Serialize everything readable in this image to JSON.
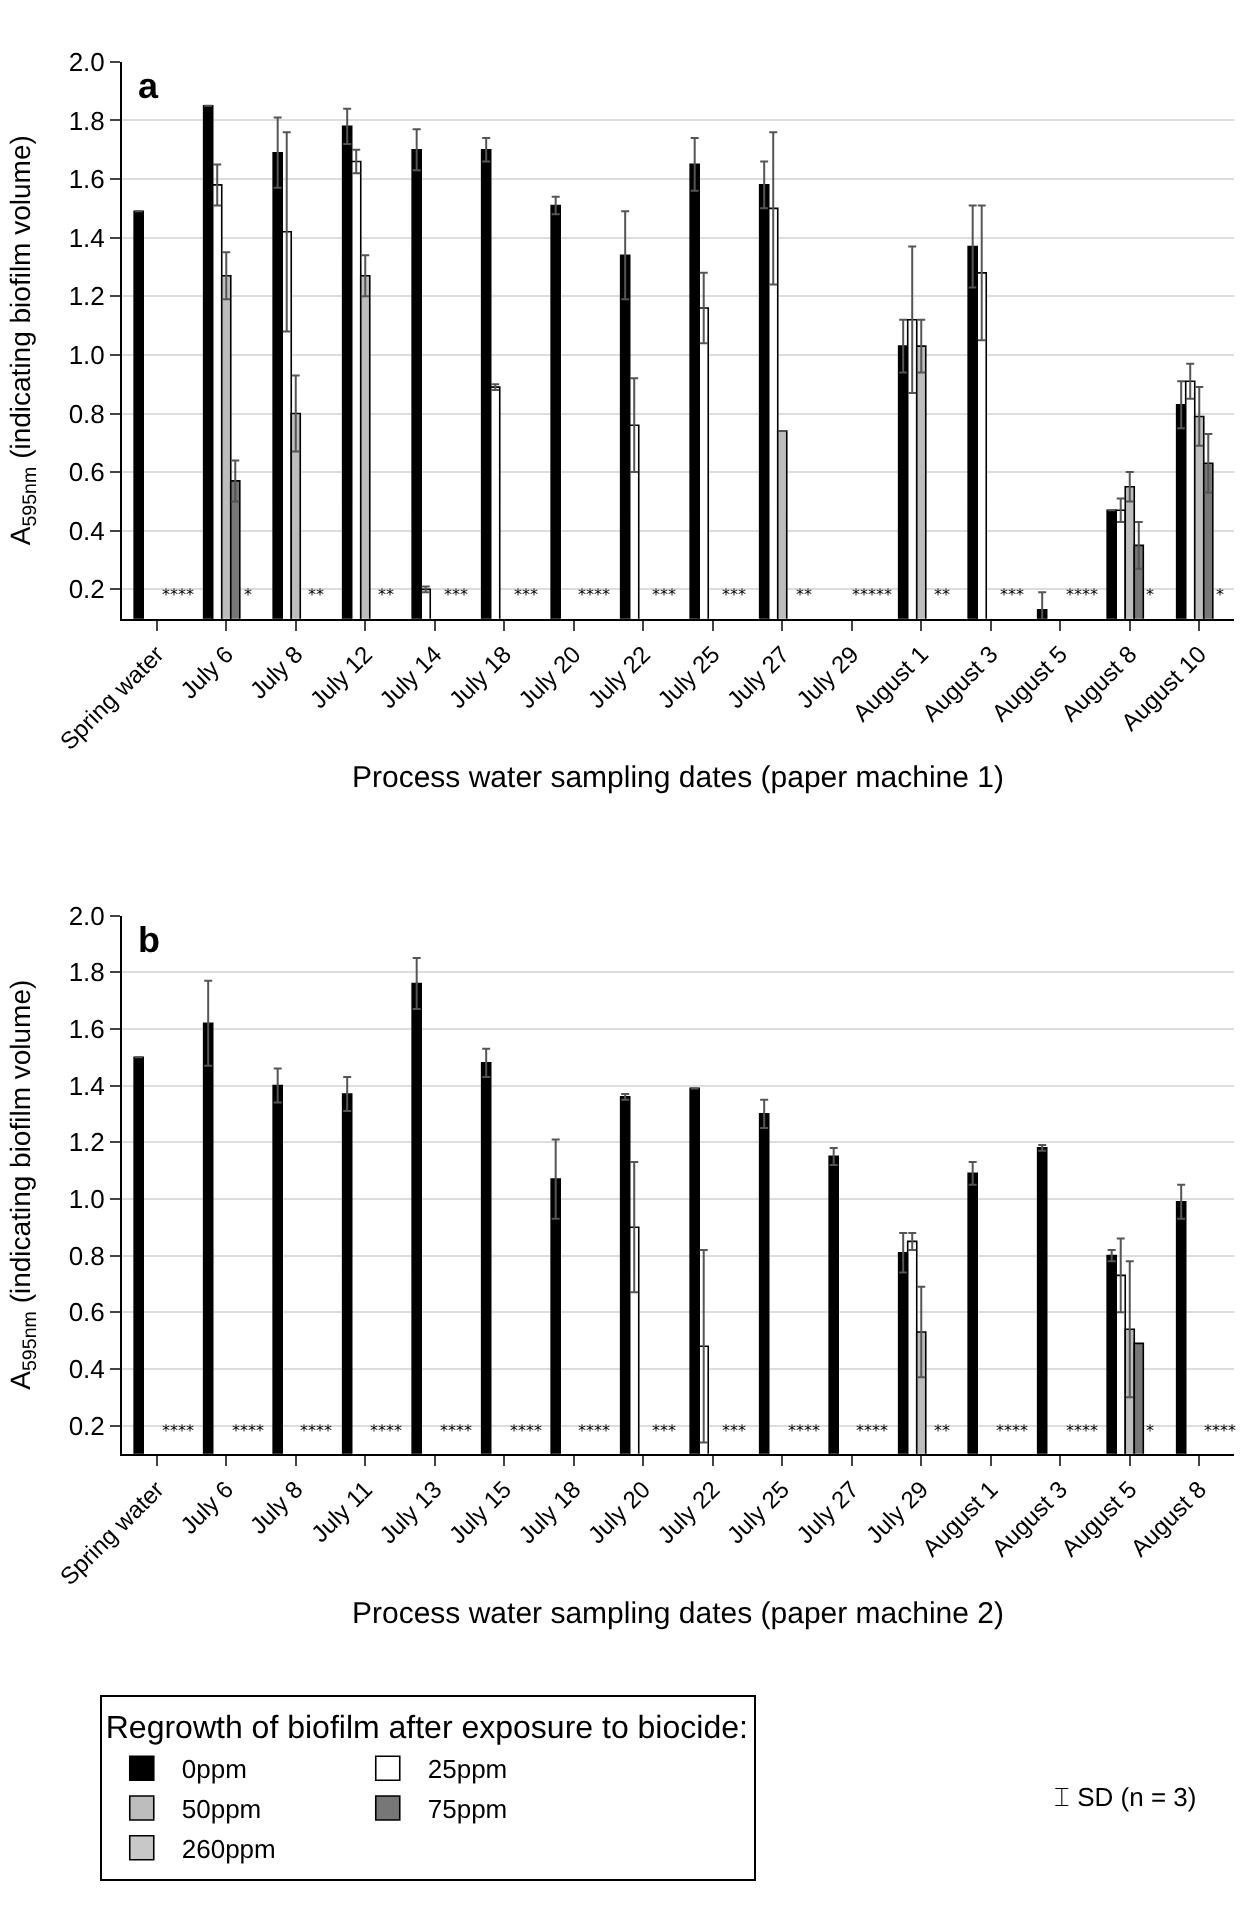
{
  "chart_data": [
    {
      "type": "bar",
      "title": "a",
      "xlabel": "Process water sampling dates (paper machine 1)",
      "ylabel": "A$_{595nm}$ (indicating biofilm volume)",
      "categories": [
        "Spring water",
        "July 6",
        "July 8",
        "July 12",
        "July 14",
        "July 18",
        "July 20",
        "July 22",
        "July 25",
        "July 27",
        "July 29",
        "August 1",
        "August 3",
        "August 5",
        "August 8",
        "August 10"
      ],
      "series": [
        {
          "color": "#000000",
          "values": [
            1.49,
            1.85,
            1.69,
            1.78,
            1.7,
            1.7,
            1.51,
            1.34,
            1.65,
            1.58,
            null,
            1.03,
            1.37,
            0.13,
            0.47,
            0.83
          ],
          "errors": [
            null,
            null,
            0.12,
            0.06,
            0.07,
            0.04,
            0.03,
            0.15,
            0.09,
            0.08,
            null,
            0.09,
            0.14,
            0.06,
            null,
            0.08
          ]
        },
        {
          "color": "#ffffff",
          "values": [
            null,
            1.58,
            1.42,
            1.66,
            0.2,
            0.89,
            null,
            0.76,
            1.16,
            1.5,
            null,
            1.12,
            1.28,
            null,
            0.47,
            0.91
          ],
          "errors": [
            null,
            0.07,
            0.34,
            0.04,
            0.01,
            0.01,
            null,
            0.16,
            0.12,
            0.26,
            null,
            0.25,
            0.23,
            null,
            0.04,
            0.06
          ]
        },
        {
          "color": "#bdbdbd",
          "values": [
            null,
            1.27,
            0.8,
            1.27,
            null,
            null,
            null,
            null,
            null,
            0.74,
            null,
            1.03,
            null,
            null,
            0.55,
            0.79
          ],
          "errors": [
            null,
            0.08,
            0.13,
            0.07,
            null,
            null,
            null,
            null,
            null,
            null,
            null,
            0.09,
            null,
            null,
            0.05,
            0.1
          ]
        },
        {
          "color": "#777777",
          "values": [
            null,
            0.57,
            null,
            null,
            null,
            null,
            null,
            null,
            null,
            null,
            null,
            null,
            null,
            null,
            0.35,
            0.63
          ],
          "errors": [
            null,
            0.07,
            null,
            null,
            null,
            null,
            null,
            null,
            null,
            null,
            null,
            null,
            null,
            null,
            0.08,
            0.1
          ]
        },
        {
          "color": "#c8c8c8",
          "values": [
            null,
            null,
            null,
            null,
            null,
            null,
            null,
            null,
            null,
            null,
            null,
            null,
            null,
            null,
            null,
            null
          ]
        }
      ],
      "annotations": [
        "****",
        "*",
        "**",
        "**",
        "***",
        "***",
        "****",
        "***",
        "***",
        "**",
        "*****",
        "**",
        "***",
        "****",
        "*",
        "*"
      ],
      "ylim": [
        0.1,
        2.0
      ],
      "yticks": [
        {
          "value": 0.2,
          "label": "0.2"
        },
        {
          "value": 0.4,
          "label": "0.4"
        },
        {
          "value": 0.6,
          "label": "0.6"
        },
        {
          "value": 0.8,
          "label": "0.8"
        },
        {
          "value": 1.0,
          "label": "1.0"
        },
        {
          "value": 1.2,
          "label": "1.2"
        },
        {
          "value": 1.4,
          "label": "1.4"
        },
        {
          "value": 1.6,
          "label": "1.6"
        },
        {
          "value": 1.8,
          "label": "1.8"
        },
        {
          "value": 2.0,
          "label": "2.0"
        }
      ],
      "grid": "y"
    },
    {
      "type": "bar",
      "title": "b",
      "xlabel": "Process water sampling dates (paper machine 2)",
      "ylabel": "A$_{595nm}$ (indicating biofilm volume)",
      "legend_title": "Regrowth of biofilm after exposure to biocide:",
      "categories": [
        "Spring water",
        "July 6",
        "July 8",
        "July 11",
        "July 13",
        "July 15",
        "July 18",
        "July 20",
        "July 22",
        "July 25",
        "July 27",
        "July 29",
        "August 1",
        "August 3",
        "August 5",
        "August 8"
      ],
      "series": [
        {
          "name": "0ppm",
          "color": "#000000",
          "values": [
            1.5,
            1.62,
            1.4,
            1.37,
            1.76,
            1.48,
            1.07,
            1.36,
            1.39,
            1.3,
            1.15,
            0.81,
            1.09,
            1.18,
            0.8,
            0.99
          ],
          "errors": [
            null,
            0.15,
            0.06,
            0.06,
            0.09,
            0.05,
            0.14,
            0.01,
            null,
            0.05,
            0.03,
            0.07,
            0.04,
            0.01,
            0.02,
            0.06
          ]
        },
        {
          "name": "25ppm",
          "color": "#ffffff",
          "values": [
            null,
            null,
            null,
            null,
            null,
            null,
            null,
            0.9,
            0.48,
            null,
            null,
            0.85,
            null,
            null,
            0.73,
            null
          ],
          "errors": [
            null,
            null,
            null,
            null,
            null,
            null,
            null,
            0.23,
            0.34,
            null,
            null,
            0.03,
            null,
            null,
            0.13,
            null
          ]
        },
        {
          "name": "50ppm",
          "color": "#bdbdbd",
          "values": [
            null,
            null,
            null,
            null,
            null,
            null,
            null,
            null,
            null,
            null,
            null,
            0.53,
            null,
            null,
            0.54,
            null
          ],
          "errors": [
            null,
            null,
            null,
            null,
            null,
            null,
            null,
            null,
            null,
            null,
            null,
            0.16,
            null,
            null,
            0.24,
            null
          ]
        },
        {
          "name": "75ppm",
          "color": "#777777",
          "values": [
            null,
            null,
            null,
            null,
            null,
            null,
            null,
            null,
            null,
            null,
            null,
            null,
            null,
            null,
            0.49,
            null
          ]
        },
        {
          "name": "260ppm",
          "color": "#c8c8c8",
          "values": [
            null,
            null,
            null,
            null,
            null,
            null,
            null,
            null,
            null,
            null,
            null,
            null,
            null,
            null,
            null,
            null
          ]
        }
      ],
      "annotations": [
        "****",
        "****",
        "****",
        "****",
        "****",
        "****",
        "****",
        "***",
        "***",
        "****",
        "****",
        "**",
        "****",
        "****",
        "*",
        "****",
        "⌶ SD (n = 3)"
      ],
      "ylim": [
        0.1,
        2.0
      ],
      "yticks": [
        {
          "value": 0.2,
          "label": "0.2"
        },
        {
          "value": 0.4,
          "label": "0.4"
        },
        {
          "value": 0.6,
          "label": "0.6"
        },
        {
          "value": 0.8,
          "label": "0.8"
        },
        {
          "value": 1.0,
          "label": "1.0"
        },
        {
          "value": 1.2,
          "label": "1.2"
        },
        {
          "value": 1.4,
          "label": "1.4"
        },
        {
          "value": 1.6,
          "label": "1.6"
        },
        {
          "value": 1.8,
          "label": "1.8"
        },
        {
          "value": 2.0,
          "label": "2.0"
        }
      ],
      "grid": "y",
      "legend": "bottom"
    }
  ]
}
